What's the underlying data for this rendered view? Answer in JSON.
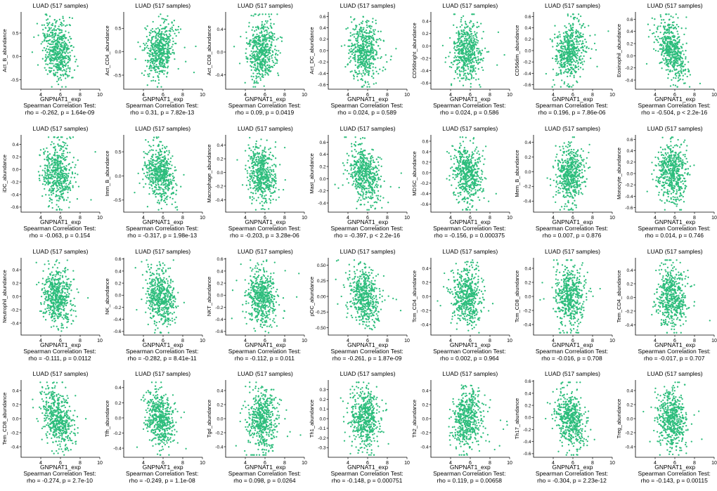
{
  "chart_data": [
    {
      "type": "scatter",
      "title": "LUAD (517 samples)",
      "xlabel": "GNPNAT1_exp",
      "ylabel": "Act_B_abundance",
      "xticks": [
        "4",
        "6",
        "8",
        "10"
      ],
      "yticks": [
        "0.5",
        "0.0",
        "-0.5"
      ],
      "xlim": [
        2,
        10
      ],
      "ylim": [
        -0.7,
        0.95
      ],
      "rho": -0.262,
      "test_label": "Spearman Correlation Test:",
      "stat_text": "rho = -0.262, p = 1.64e-09"
    },
    {
      "type": "scatter",
      "title": "LUAD (517 samples)",
      "xlabel": "GNPNAT1_exp",
      "ylabel": "Act_CD4_abundance",
      "xticks": [
        "4",
        "6",
        "8",
        "10"
      ],
      "yticks": [
        "0.5",
        "0.0",
        "-0.5"
      ],
      "xlim": [
        2,
        10
      ],
      "ylim": [
        -0.8,
        0.85
      ],
      "rho": 0.31,
      "test_label": "Spearman Correlation Test:",
      "stat_text": "rho = 0.31, p = 7.82e-13"
    },
    {
      "type": "scatter",
      "title": "LUAD (517 samples)",
      "xlabel": "GNPNAT1_exp",
      "ylabel": "Act_CD8_abundance",
      "xticks": [
        "4",
        "6",
        "8",
        "10"
      ],
      "yticks": [
        "0.4",
        "0.0",
        "-0.4"
      ],
      "xlim": [
        2,
        10
      ],
      "ylim": [
        -0.65,
        0.7
      ],
      "rho": 0.09,
      "test_label": "Spearman Correlation Test:",
      "stat_text": "rho = 0.09, p = 0.0419"
    },
    {
      "type": "scatter",
      "title": "LUAD (517 samples)",
      "xlabel": "GNPNAT1_exp",
      "ylabel": "Act_DC_abundance",
      "xticks": [
        "4",
        "6",
        "8",
        "10"
      ],
      "yticks": [
        "0.6",
        "0.4",
        "0.2",
        "0.0",
        "-0.2",
        "-0.4",
        "-0.6"
      ],
      "xlim": [
        2,
        10
      ],
      "ylim": [
        -0.68,
        0.68
      ],
      "rho": 0.024,
      "test_label": "Spearman Correlation Test:",
      "stat_text": "rho = 0.024, p = 0.589"
    },
    {
      "type": "scatter",
      "title": "LUAD (517 samples)",
      "xlabel": "GNPNAT1_exp",
      "ylabel": "CD56bright_abundance",
      "xticks": [
        "4",
        "6",
        "8",
        "10"
      ],
      "yticks": [
        "0.4",
        "0.2",
        "0.0",
        "-0.2",
        "-0.4",
        "-0.6"
      ],
      "xlim": [
        2,
        10
      ],
      "ylim": [
        -0.7,
        0.55
      ],
      "rho": 0.024,
      "test_label": "Spearman Correlation Test:",
      "stat_text": "rho = 0.024, p = 0.586"
    },
    {
      "type": "scatter",
      "title": "LUAD (517 samples)",
      "xlabel": "GNPNAT1_exp",
      "ylabel": "CD56dim_abundance",
      "xticks": [
        "4",
        "6",
        "8",
        "10"
      ],
      "yticks": [
        "0.6",
        "0.4",
        "0.2",
        "0.0",
        "-0.2",
        "-0.4",
        "-0.6"
      ],
      "xlim": [
        2,
        10
      ],
      "ylim": [
        -0.68,
        0.68
      ],
      "rho": 0.196,
      "test_label": "Spearman Correlation Test:",
      "stat_text": "rho = 0.196, p = 7.86e-06"
    },
    {
      "type": "scatter",
      "title": "LUAD (517 samples)",
      "xlabel": "GNPNAT1_exp",
      "ylabel": "Eosinophil_abundance",
      "xticks": [
        "4",
        "6",
        "8",
        "10"
      ],
      "yticks": [
        "0.6",
        "0.4",
        "0.2",
        "0.0",
        "-0.2",
        "-0.4"
      ],
      "xlim": [
        2,
        10
      ],
      "ylim": [
        -0.55,
        0.72
      ],
      "rho": -0.504,
      "test_label": "Spearman Correlation Test:",
      "stat_text": "rho = -0.504, p < 2.2e-16"
    },
    {
      "type": "scatter",
      "title": "LUAD (517 samples)",
      "xlabel": "GNPNAT1_exp",
      "ylabel": "iDC_abundance",
      "xticks": [
        "4",
        "6",
        "8",
        "10"
      ],
      "yticks": [
        "0.4",
        "0.2",
        "0.0",
        "-0.2",
        "-0.4",
        "-0.6"
      ],
      "xlim": [
        2,
        10
      ],
      "ylim": [
        -0.68,
        0.55
      ],
      "rho": -0.063,
      "test_label": "Spearman Correlation Test:",
      "stat_text": "rho = -0.063, p = 0.154"
    },
    {
      "type": "scatter",
      "title": "LUAD (517 samples)",
      "xlabel": "GNPNAT1_exp",
      "ylabel": "Imm_B_abundance",
      "xticks": [
        "4",
        "6",
        "8",
        "10"
      ],
      "yticks": [
        "0.5",
        "0.0",
        "-0.5"
      ],
      "xlim": [
        2,
        10
      ],
      "ylim": [
        -0.75,
        0.85
      ],
      "rho": -0.317,
      "test_label": "Spearman Correlation Test:",
      "stat_text": "rho = -0.317, p = 1.98e-13"
    },
    {
      "type": "scatter",
      "title": "LUAD (517 samples)",
      "xlabel": "GNPNAT1_exp",
      "ylabel": "Macrophage_abundance",
      "xticks": [
        "4",
        "6",
        "8",
        "10"
      ],
      "yticks": [
        "0.4",
        "0.2",
        "0.0",
        "-0.2",
        "-0.4"
      ],
      "xlim": [
        2,
        10
      ],
      "ylim": [
        -0.58,
        0.55
      ],
      "rho": -0.203,
      "test_label": "Spearman Correlation Test:",
      "stat_text": "rho = -0.203, p = 3.28e-06"
    },
    {
      "type": "scatter",
      "title": "LUAD (517 samples)",
      "xlabel": "GNPNAT1_exp",
      "ylabel": "Mast_abundance",
      "xticks": [
        "4",
        "6",
        "8",
        "10"
      ],
      "yticks": [
        "0.6",
        "0.4",
        "0.2",
        "0.0",
        "-0.2",
        "-0.4"
      ],
      "xlim": [
        2,
        10
      ],
      "ylim": [
        -0.55,
        0.72
      ],
      "rho": -0.397,
      "test_label": "Spearman Correlation Test:",
      "stat_text": "rho = -0.397, p < 2.2e-16"
    },
    {
      "type": "scatter",
      "title": "LUAD (517 samples)",
      "xlabel": "GNPNAT1_exp",
      "ylabel": "MDSC_abundance",
      "xticks": [
        "4",
        "6",
        "8",
        "10"
      ],
      "yticks": [
        "0.6",
        "0.4",
        "0.2",
        "0.0",
        "-0.2",
        "-0.4",
        "-0.6"
      ],
      "xlim": [
        2,
        10
      ],
      "ylim": [
        -0.75,
        0.72
      ],
      "rho": -0.156,
      "test_label": "Spearman Correlation Test:",
      "stat_text": "rho = -0.156, p = 0.000375"
    },
    {
      "type": "scatter",
      "title": "LUAD (517 samples)",
      "xlabel": "GNPNAT1_exp",
      "ylabel": "Mem_B_abundance",
      "xticks": [
        "4",
        "6",
        "8",
        "10"
      ],
      "yticks": [
        "0.4",
        "0.2",
        "0.0",
        "-0.2",
        "-0.4"
      ],
      "xlim": [
        2,
        10
      ],
      "ylim": [
        -0.55,
        0.5
      ],
      "rho": 0.007,
      "test_label": "Spearman Correlation Test:",
      "stat_text": "rho = 0.007, p = 0.876"
    },
    {
      "type": "scatter",
      "title": "LUAD (517 samples)",
      "xlabel": "GNPNAT1_exp",
      "ylabel": "Monocyte_abundance",
      "xticks": [
        "4",
        "6",
        "8",
        "10"
      ],
      "yticks": [
        "0.6",
        "0.4",
        "0.2",
        "0.0",
        "-0.2",
        "-0.4",
        "-0.6"
      ],
      "xlim": [
        2,
        10
      ],
      "ylim": [
        -0.68,
        0.68
      ],
      "rho": 0.014,
      "test_label": "Spearman Correlation Test:",
      "stat_text": "rho = 0.014, p = 0.746"
    },
    {
      "type": "scatter",
      "title": "LUAD (517 samples)",
      "xlabel": "GNPNAT1_exp",
      "ylabel": "Neutrophil_abundance",
      "xticks": [
        "4",
        "6",
        "8",
        "10"
      ],
      "yticks": [
        "0.4",
        "0.2",
        "0.0",
        "-0.2",
        "-0.4"
      ],
      "xlim": [
        2,
        10
      ],
      "ylim": [
        -0.58,
        0.58
      ],
      "rho": -0.111,
      "test_label": "Spearman Correlation Test:",
      "stat_text": "rho = -0.111, p = 0.0112"
    },
    {
      "type": "scatter",
      "title": "LUAD (517 samples)",
      "xlabel": "GNPNAT1_exp",
      "ylabel": "NK_abundance",
      "xticks": [
        "4",
        "6",
        "8",
        "10"
      ],
      "yticks": [
        "0.6",
        "0.4",
        "0.2",
        "0.0",
        "-0.2",
        "-0.4",
        "-0.6"
      ],
      "xlim": [
        2,
        10
      ],
      "ylim": [
        -0.66,
        0.62
      ],
      "rho": -0.282,
      "test_label": "Spearman Correlation Test:",
      "stat_text": "rho = -0.282, p = 8.41e-11"
    },
    {
      "type": "scatter",
      "title": "LUAD (517 samples)",
      "xlabel": "GNPNAT1_exp",
      "ylabel": "NKT_abundance",
      "xticks": [
        "4",
        "6",
        "8",
        "10"
      ],
      "yticks": [
        "0.6",
        "0.4",
        "0.2",
        "0.0",
        "-0.2",
        "-0.4",
        "-0.6"
      ],
      "xlim": [
        2,
        10
      ],
      "ylim": [
        -0.66,
        0.62
      ],
      "rho": -0.112,
      "test_label": "Spearman Correlation Test:",
      "stat_text": "rho = -0.112, p = 0.011"
    },
    {
      "type": "scatter",
      "title": "LUAD (517 samples)",
      "xlabel": "GNPNAT1_exp",
      "ylabel": "pDC_abundance",
      "xticks": [
        "4",
        "6",
        "8",
        "10"
      ],
      "yticks": [
        "0.50",
        "0.25",
        "0.00",
        "-0.25",
        "-0.50"
      ],
      "xlim": [
        2,
        10
      ],
      "ylim": [
        -0.62,
        0.62
      ],
      "rho": -0.261,
      "test_label": "Spearman Correlation Test:",
      "stat_text": "rho = -0.261, p = 1.87e-09"
    },
    {
      "type": "scatter",
      "title": "LUAD (517 samples)",
      "xlabel": "GNPNAT1_exp",
      "ylabel": "Tcm_CD4_abundance",
      "xticks": [
        "4",
        "6",
        "8",
        "10"
      ],
      "yticks": [
        "0.4",
        "0.2",
        "0.0",
        "-0.2",
        "-0.4"
      ],
      "xlim": [
        2,
        10
      ],
      "ylim": [
        -0.55,
        0.55
      ],
      "rho": 0.002,
      "test_label": "Spearman Correlation Test:",
      "stat_text": "rho = 0.002, p = 0.964"
    },
    {
      "type": "scatter",
      "title": "LUAD (517 samples)",
      "xlabel": "GNPNAT1_exp",
      "ylabel": "Tcm_CD8_abundance",
      "xticks": [
        "4",
        "6",
        "8",
        "10"
      ],
      "yticks": [
        "0.4",
        "0.2",
        "0.0",
        "-0.2",
        "-0.4"
      ],
      "xlim": [
        2,
        10
      ],
      "ylim": [
        -0.55,
        0.55
      ],
      "rho": -0.016,
      "test_label": "Spearman Correlation Test:",
      "stat_text": "rho = -0.016, p = 0.708"
    },
    {
      "type": "scatter",
      "title": "LUAD (517 samples)",
      "xlabel": "GNPNAT1_exp",
      "ylabel": "Tem_CD4_abundance",
      "xticks": [
        "4",
        "6",
        "8",
        "10"
      ],
      "yticks": [
        "0.4",
        "0.2",
        "0.0",
        "-0.2",
        "-0.4"
      ],
      "xlim": [
        2,
        10
      ],
      "ylim": [
        -0.55,
        0.58
      ],
      "rho": -0.017,
      "test_label": "Spearman Correlation Test:",
      "stat_text": "rho = -0.017, p = 0.707"
    },
    {
      "type": "scatter",
      "title": "LUAD (517 samples)",
      "xlabel": "GNPNAT1_exp",
      "ylabel": "Tem_CD8_abundance",
      "xticks": [
        "4",
        "6",
        "8",
        "10"
      ],
      "yticks": [
        "0.4",
        "0.2",
        "0.0",
        "-0.2",
        "-0.4"
      ],
      "xlim": [
        2,
        10
      ],
      "ylim": [
        -0.55,
        0.55
      ],
      "rho": -0.274,
      "test_label": "Spearman Correlation Test:",
      "stat_text": "rho = -0.274, p = 2.7e-10"
    },
    {
      "type": "scatter",
      "title": "LUAD (517 samples)",
      "xlabel": "GNPNAT1_exp",
      "ylabel": "Tfh_abundance",
      "xticks": [
        "4",
        "6",
        "8",
        "10"
      ],
      "yticks": [
        "0.4",
        "0.2",
        "0.0",
        "-0.2",
        "-0.4"
      ],
      "xlim": [
        2,
        10
      ],
      "ylim": [
        -0.52,
        0.5
      ],
      "rho": -0.249,
      "test_label": "Spearman Correlation Test:",
      "stat_text": "rho = -0.249, p = 1.1e-08"
    },
    {
      "type": "scatter",
      "title": "LUAD (517 samples)",
      "xlabel": "GNPNAT1_exp",
      "ylabel": "Tgd_abundance",
      "xticks": [
        "4",
        "6",
        "8",
        "10"
      ],
      "yticks": [
        "0.4",
        "0.2",
        "0.0",
        "-0.2",
        "-0.4"
      ],
      "xlim": [
        2,
        10
      ],
      "ylim": [
        -0.55,
        0.55
      ],
      "rho": 0.098,
      "test_label": "Spearman Correlation Test:",
      "stat_text": "rho = 0.098, p = 0.0264"
    },
    {
      "type": "scatter",
      "title": "LUAD (517 samples)",
      "xlabel": "GNPNAT1_exp",
      "ylabel": "Th1_abundance",
      "xticks": [
        "4",
        "6",
        "8",
        "10"
      ],
      "yticks": [
        "0.3",
        "0.2",
        "0.1",
        "0.0",
        "-0.1",
        "-0.2",
        "-0.3"
      ],
      "xlim": [
        2,
        10
      ],
      "ylim": [
        -0.4,
        0.4
      ],
      "rho": -0.148,
      "test_label": "Spearman Correlation Test:",
      "stat_text": "rho = -0.148, p = 0.000751"
    },
    {
      "type": "scatter",
      "title": "LUAD (517 samples)",
      "xlabel": "GNPNAT1_exp",
      "ylabel": "Th2_abundance",
      "xticks": [
        "4",
        "6",
        "8",
        "10"
      ],
      "yticks": [
        "0.4",
        "0.2",
        "0.0",
        "-0.2",
        "-0.4"
      ],
      "xlim": [
        2,
        10
      ],
      "ylim": [
        -0.55,
        0.55
      ],
      "rho": 0.119,
      "test_label": "Spearman Correlation Test:",
      "stat_text": "rho = 0.119, p = 0.00658"
    },
    {
      "type": "scatter",
      "title": "LUAD (517 samples)",
      "xlabel": "GNPNAT1_exp",
      "ylabel": "Th17_abundance",
      "xticks": [
        "4",
        "6",
        "8",
        "10"
      ],
      "yticks": [
        "0.6",
        "0.4",
        "0.2",
        "0.0",
        "-0.2",
        "-0.4",
        "-0.6"
      ],
      "xlim": [
        2,
        10
      ],
      "ylim": [
        -0.66,
        0.62
      ],
      "rho": -0.304,
      "test_label": "Spearman Correlation Test:",
      "stat_text": "rho = -0.304, p = 2.23e-12"
    },
    {
      "type": "scatter",
      "title": "LUAD (517 samples)",
      "xlabel": "GNPNAT1_exp",
      "ylabel": "Treg_abundance",
      "xticks": [
        "4",
        "6",
        "8",
        "10"
      ],
      "yticks": [
        "0.4",
        "0.2",
        "0.0",
        "-0.2",
        "-0.4"
      ],
      "xlim": [
        2,
        10
      ],
      "ylim": [
        -0.55,
        0.55
      ],
      "rho": -0.143,
      "test_label": "Spearman Correlation Test:",
      "stat_text": "rho = -0.143, p = 0.00115"
    }
  ],
  "layout_info": {
    "grid": "4 rows x 7 columns",
    "point_color": "#2dbd7c",
    "axis_color": "#000000",
    "n_points_per_panel": 517
  }
}
